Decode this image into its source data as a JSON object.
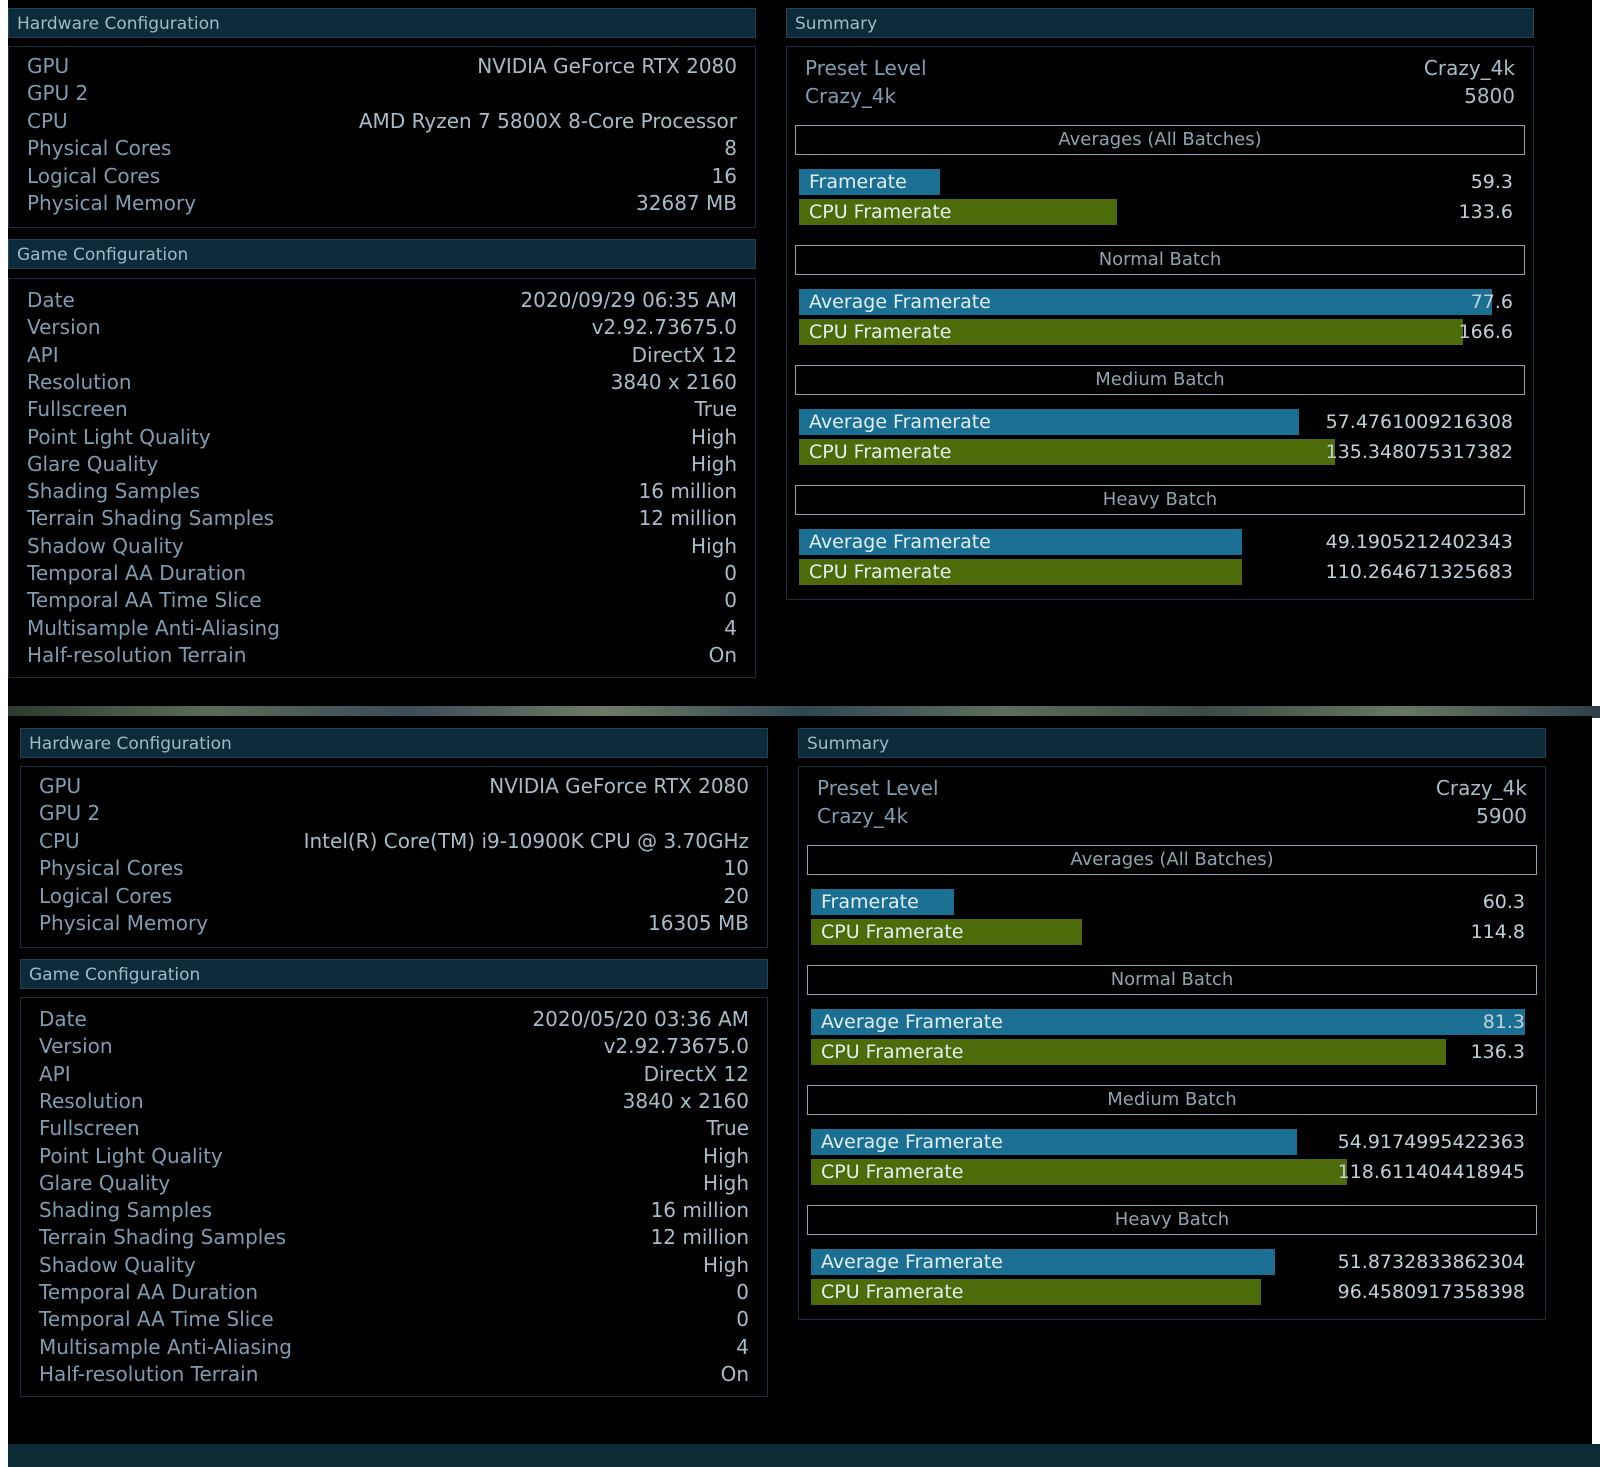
{
  "panels": [
    {
      "hardware": {
        "title": "Hardware Configuration",
        "rows": [
          {
            "label": "GPU",
            "value": "NVIDIA GeForce RTX 2080"
          },
          {
            "label": "GPU 2",
            "value": ""
          },
          {
            "label": "CPU",
            "value": "AMD Ryzen 7 5800X 8-Core Processor"
          },
          {
            "label": "Physical Cores",
            "value": "8"
          },
          {
            "label": "Logical Cores",
            "value": "16"
          },
          {
            "label": "Physical Memory",
            "value": "32687 MB"
          }
        ]
      },
      "game": {
        "title": "Game Configuration",
        "rows": [
          {
            "label": "Date",
            "value": "2020/09/29 06:35 AM"
          },
          {
            "label": "Version",
            "value": "v2.92.73675.0"
          },
          {
            "label": "API",
            "value": "DirectX 12"
          },
          {
            "label": "Resolution",
            "value": "3840 x 2160"
          },
          {
            "label": "Fullscreen",
            "value": "True"
          },
          {
            "label": "Point Light Quality",
            "value": "High"
          },
          {
            "label": "Glare Quality",
            "value": "High"
          },
          {
            "label": "Shading Samples",
            "value": "16 million"
          },
          {
            "label": "Terrain Shading Samples",
            "value": "12 million"
          },
          {
            "label": "Shadow Quality",
            "value": "High"
          },
          {
            "label": "Temporal AA Duration",
            "value": "0"
          },
          {
            "label": "Temporal AA Time Slice",
            "value": "0"
          },
          {
            "label": "Multisample Anti-Aliasing",
            "value": "4"
          },
          {
            "label": "Half-resolution Terrain",
            "value": "On"
          }
        ]
      },
      "summary": {
        "title": "Summary",
        "preset_label": "Preset Level",
        "preset_value": "Crazy_4k",
        "score_label": "Crazy_4k",
        "score_value": "5800",
        "sections": [
          {
            "title": "Averages (All Batches)",
            "bars": [
              {
                "label": "Framerate",
                "value": "59.3",
                "color": "#1a6f93",
                "fill": 0.197
              },
              {
                "label": "CPU Framerate",
                "value": "133.6",
                "color": "#4e6b09",
                "fill": 0.445
              }
            ]
          },
          {
            "title": "Normal Batch",
            "bars": [
              {
                "label": "Average Framerate",
                "value": "77.6",
                "color": "#1a6f93",
                "fill": 0.97
              },
              {
                "label": "CPU Framerate",
                "value": "166.6",
                "color": "#4e6b09",
                "fill": 0.93
              }
            ]
          },
          {
            "title": "Medium Batch",
            "bars": [
              {
                "label": "Average Framerate",
                "value": "57.4761009216308",
                "color": "#1a6f93",
                "fill": 0.7
              },
              {
                "label": "CPU Framerate",
                "value": "135.348075317382",
                "color": "#4e6b09",
                "fill": 0.75
              }
            ]
          },
          {
            "title": "Heavy Batch",
            "bars": [
              {
                "label": "Average Framerate",
                "value": "49.1905212402343",
                "color": "#1a6f93",
                "fill": 0.62
              },
              {
                "label": "CPU Framerate",
                "value": "110.264671325683",
                "color": "#4e6b09",
                "fill": 0.62
              }
            ]
          }
        ]
      }
    },
    {
      "hardware": {
        "title": "Hardware Configuration",
        "rows": [
          {
            "label": "GPU",
            "value": "NVIDIA GeForce RTX 2080"
          },
          {
            "label": "GPU 2",
            "value": ""
          },
          {
            "label": "CPU",
            "value": "Intel(R) Core(TM) i9-10900K CPU @ 3.70GHz"
          },
          {
            "label": "Physical Cores",
            "value": "10"
          },
          {
            "label": "Logical Cores",
            "value": "20"
          },
          {
            "label": "Physical Memory",
            "value": "16305 MB"
          }
        ]
      },
      "game": {
        "title": "Game Configuration",
        "rows": [
          {
            "label": "Date",
            "value": "2020/05/20 03:36 AM"
          },
          {
            "label": "Version",
            "value": "v2.92.73675.0"
          },
          {
            "label": "API",
            "value": "DirectX 12"
          },
          {
            "label": "Resolution",
            "value": "3840 x 2160"
          },
          {
            "label": "Fullscreen",
            "value": "True"
          },
          {
            "label": "Point Light Quality",
            "value": "High"
          },
          {
            "label": "Glare Quality",
            "value": "High"
          },
          {
            "label": "Shading Samples",
            "value": "16 million"
          },
          {
            "label": "Terrain Shading Samples",
            "value": "12 million"
          },
          {
            "label": "Shadow Quality",
            "value": "High"
          },
          {
            "label": "Temporal AA Duration",
            "value": "0"
          },
          {
            "label": "Temporal AA Time Slice",
            "value": "0"
          },
          {
            "label": "Multisample Anti-Aliasing",
            "value": "4"
          },
          {
            "label": "Half-resolution Terrain",
            "value": "On"
          }
        ]
      },
      "summary": {
        "title": "Summary",
        "preset_label": "Preset Level",
        "preset_value": "Crazy_4k",
        "score_label": "Crazy_4k",
        "score_value": "5900",
        "sections": [
          {
            "title": "Averages (All Batches)",
            "bars": [
              {
                "label": "Framerate",
                "value": "60.3",
                "color": "#1a6f93",
                "fill": 0.2
              },
              {
                "label": "CPU Framerate",
                "value": "114.8",
                "color": "#4e6b09",
                "fill": 0.38
              }
            ]
          },
          {
            "title": "Normal Batch",
            "bars": [
              {
                "label": "Average Framerate",
                "value": "81.3",
                "color": "#1a6f93",
                "fill": 1.0
              },
              {
                "label": "CPU Framerate",
                "value": "136.3",
                "color": "#4e6b09",
                "fill": 0.89
              }
            ]
          },
          {
            "title": "Medium Batch",
            "bars": [
              {
                "label": "Average Framerate",
                "value": "54.9174995422363",
                "color": "#1a6f93",
                "fill": 0.68
              },
              {
                "label": "CPU Framerate",
                "value": "118.611404418945",
                "color": "#4e6b09",
                "fill": 0.75
              }
            ]
          },
          {
            "title": "Heavy Batch",
            "bars": [
              {
                "label": "Average Framerate",
                "value": "51.8732833862304",
                "color": "#1a6f93",
                "fill": 0.65
              },
              {
                "label": "CPU Framerate",
                "value": "96.4580917358398",
                "color": "#4e6b09",
                "fill": 0.63
              }
            ]
          }
        ]
      }
    }
  ]
}
